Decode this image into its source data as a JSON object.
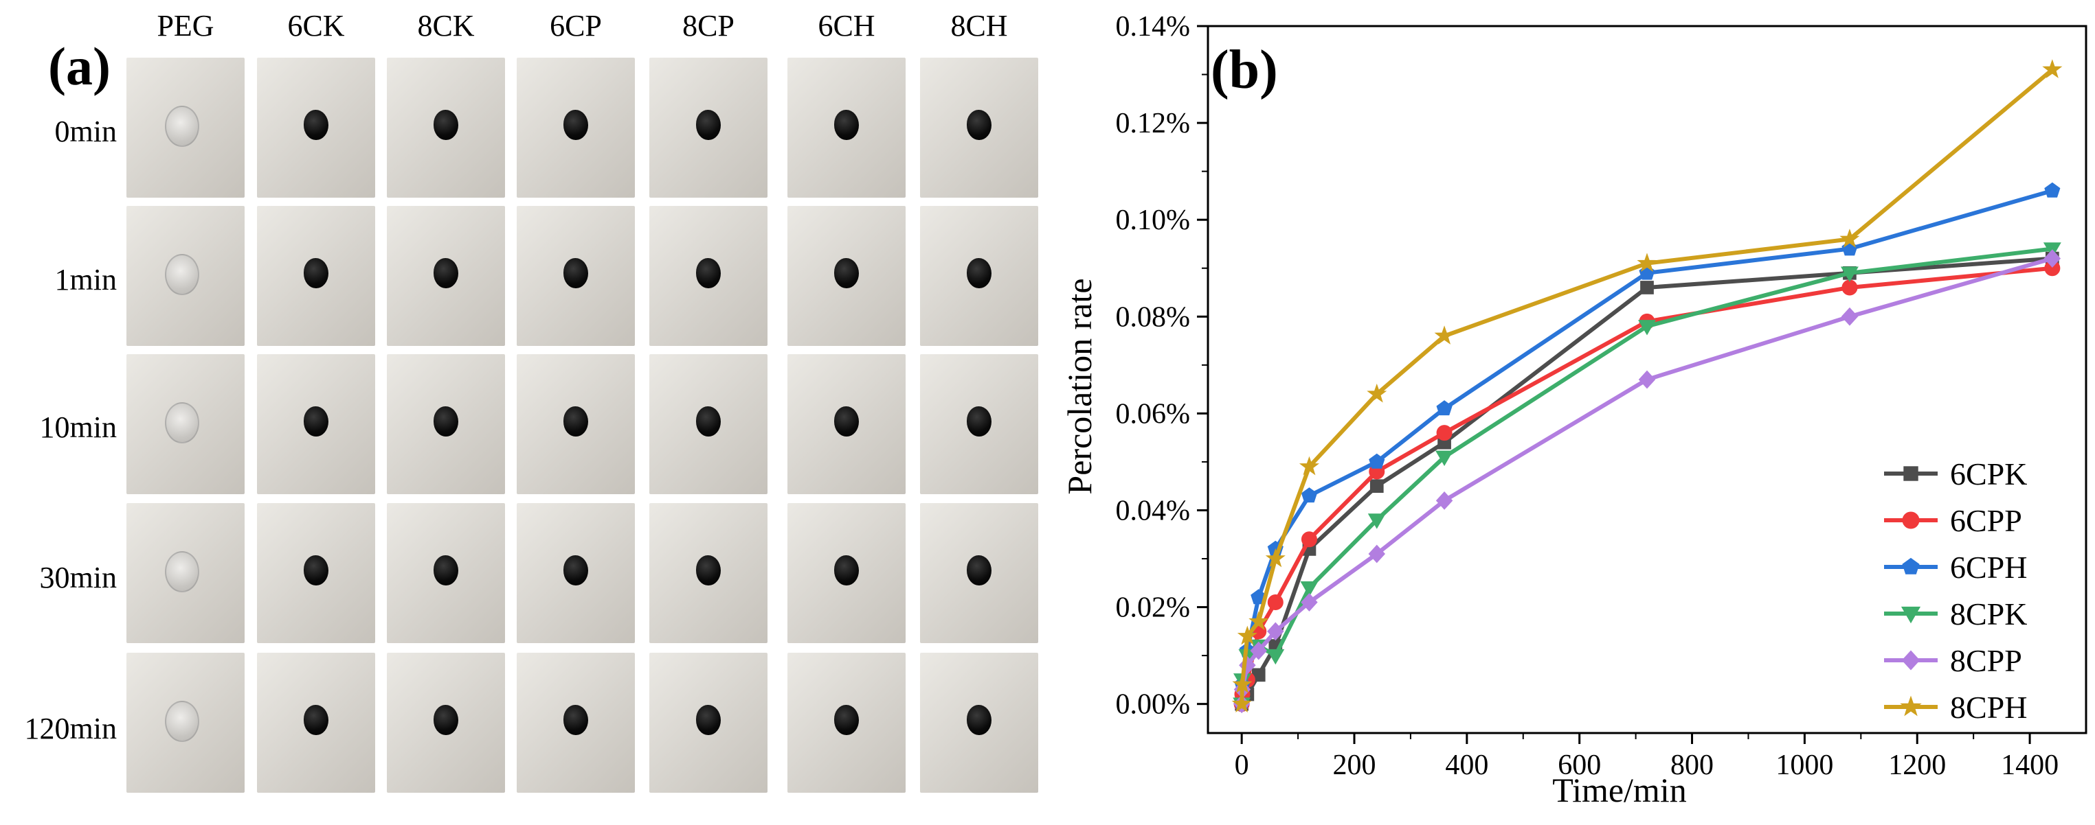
{
  "panel_a": {
    "label": "(a)",
    "columns": [
      "PEG",
      "6CK",
      "8CK",
      "6CP",
      "8CP",
      "6CH",
      "8CH"
    ],
    "rows": [
      "0min",
      "1min",
      "10min",
      "30min",
      "120min"
    ]
  },
  "panel_b": {
    "label": "(b)"
  },
  "colors": {
    "6CPK": "#4d4d4d",
    "6CPP": "#f0393a",
    "6CPH": "#2a75d8",
    "8CPK": "#3dae6b",
    "8CPP": "#b27ee0",
    "8CPH": "#cfa01c"
  },
  "chart_data": {
    "type": "line",
    "xlabel": "Time/min",
    "ylabel": "Percolation rate",
    "xlim": [
      -60,
      1500
    ],
    "ylim": [
      -0.006,
      0.14
    ],
    "xticks": [
      0,
      200,
      400,
      600,
      800,
      1000,
      1200,
      1400
    ],
    "yticks": [
      0.0,
      0.02,
      0.04,
      0.06,
      0.08,
      0.1,
      0.12,
      0.14
    ],
    "ytick_labels": [
      "0.00%",
      "0.02%",
      "0.04%",
      "0.06%",
      "0.08%",
      "0.10%",
      "0.12%",
      "0.14%"
    ],
    "legend_position": "bottom-right",
    "series": [
      {
        "name": "6CPK",
        "marker": "square",
        "x": [
          0,
          1,
          10,
          30,
          60,
          120,
          240,
          360,
          720,
          1080,
          1440
        ],
        "y": [
          0,
          0.001,
          0.002,
          0.006,
          0.012,
          0.032,
          0.045,
          0.054,
          0.086,
          0.089,
          0.092
        ]
      },
      {
        "name": "6CPP",
        "marker": "circle",
        "x": [
          0,
          1,
          10,
          30,
          60,
          120,
          240,
          360,
          720,
          1080,
          1440
        ],
        "y": [
          0,
          0.002,
          0.005,
          0.015,
          0.021,
          0.034,
          0.048,
          0.056,
          0.079,
          0.086,
          0.09
        ]
      },
      {
        "name": "6CPH",
        "marker": "pentagon",
        "x": [
          0,
          1,
          10,
          30,
          60,
          120,
          240,
          360,
          720,
          1080,
          1440
        ],
        "y": [
          0,
          0.004,
          0.011,
          0.022,
          0.032,
          0.043,
          0.05,
          0.061,
          0.089,
          0.094,
          0.106
        ]
      },
      {
        "name": "8CPK",
        "marker": "triangle-down",
        "x": [
          0,
          1,
          10,
          30,
          60,
          120,
          240,
          360,
          720,
          1080,
          1440
        ],
        "y": [
          0,
          0.005,
          0.01,
          0.012,
          0.01,
          0.024,
          0.038,
          0.051,
          0.078,
          0.089,
          0.094
        ]
      },
      {
        "name": "8CPP",
        "marker": "diamond",
        "x": [
          0,
          1,
          10,
          30,
          60,
          120,
          240,
          360,
          720,
          1080,
          1440
        ],
        "y": [
          0,
          0.003,
          0.008,
          0.011,
          0.015,
          0.021,
          0.031,
          0.042,
          0.067,
          0.08,
          0.092
        ]
      },
      {
        "name": "8CPH",
        "marker": "star",
        "x": [
          0,
          1,
          10,
          30,
          60,
          120,
          240,
          360,
          720,
          1080,
          1440
        ],
        "y": [
          0,
          0.004,
          0.014,
          0.017,
          0.03,
          0.049,
          0.064,
          0.076,
          0.091,
          0.096,
          0.131
        ]
      }
    ]
  }
}
